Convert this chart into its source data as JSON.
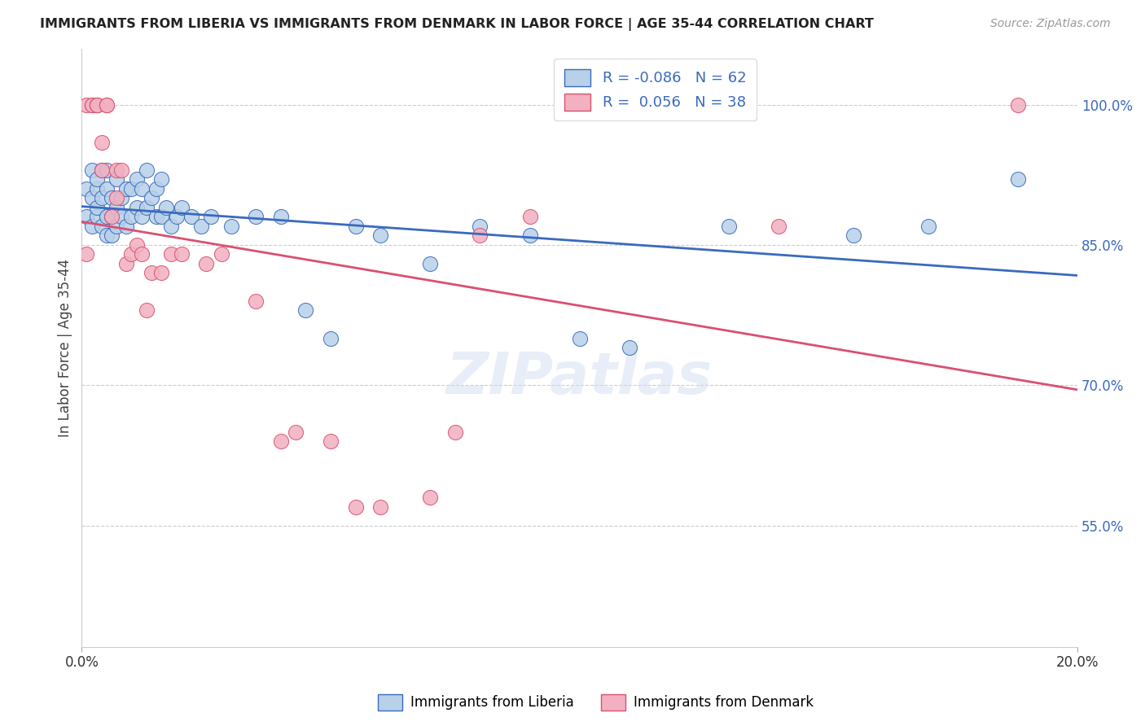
{
  "title": "IMMIGRANTS FROM LIBERIA VS IMMIGRANTS FROM DENMARK IN LABOR FORCE | AGE 35-44 CORRELATION CHART",
  "source": "Source: ZipAtlas.com",
  "ylabel": "In Labor Force | Age 35-44",
  "xlabel_ticks": [
    "0.0%",
    "20.0%"
  ],
  "ytick_labels": [
    "55.0%",
    "70.0%",
    "85.0%",
    "100.0%"
  ],
  "ytick_values": [
    0.55,
    0.7,
    0.85,
    1.0
  ],
  "xmin": 0.0,
  "xmax": 0.2,
  "ymin": 0.42,
  "ymax": 1.06,
  "liberia_R": "-0.086",
  "liberia_N": "62",
  "denmark_R": "0.056",
  "denmark_N": "38",
  "liberia_color": "#b8d0e8",
  "denmark_color": "#f2b0c0",
  "liberia_line_color": "#3a6abf",
  "denmark_line_color": "#d95070",
  "liberia_scatter_x": [
    0.001,
    0.001,
    0.002,
    0.002,
    0.002,
    0.003,
    0.003,
    0.003,
    0.003,
    0.004,
    0.004,
    0.004,
    0.005,
    0.005,
    0.005,
    0.005,
    0.006,
    0.006,
    0.006,
    0.007,
    0.007,
    0.007,
    0.008,
    0.008,
    0.009,
    0.009,
    0.01,
    0.01,
    0.011,
    0.011,
    0.012,
    0.012,
    0.013,
    0.013,
    0.014,
    0.015,
    0.015,
    0.016,
    0.016,
    0.017,
    0.018,
    0.019,
    0.02,
    0.022,
    0.024,
    0.026,
    0.03,
    0.035,
    0.04,
    0.045,
    0.05,
    0.055,
    0.06,
    0.07,
    0.08,
    0.09,
    0.1,
    0.11,
    0.13,
    0.155,
    0.17,
    0.188
  ],
  "liberia_scatter_y": [
    0.88,
    0.91,
    0.87,
    0.9,
    0.93,
    0.88,
    0.89,
    0.91,
    0.92,
    0.87,
    0.9,
    0.93,
    0.86,
    0.88,
    0.91,
    0.93,
    0.86,
    0.88,
    0.9,
    0.87,
    0.89,
    0.92,
    0.88,
    0.9,
    0.87,
    0.91,
    0.88,
    0.91,
    0.89,
    0.92,
    0.88,
    0.91,
    0.89,
    0.93,
    0.9,
    0.88,
    0.91,
    0.88,
    0.92,
    0.89,
    0.87,
    0.88,
    0.89,
    0.88,
    0.87,
    0.88,
    0.87,
    0.88,
    0.88,
    0.78,
    0.75,
    0.87,
    0.86,
    0.83,
    0.87,
    0.86,
    0.75,
    0.74,
    0.87,
    0.86,
    0.87,
    0.92
  ],
  "denmark_scatter_x": [
    0.001,
    0.001,
    0.002,
    0.002,
    0.003,
    0.003,
    0.003,
    0.004,
    0.004,
    0.005,
    0.005,
    0.006,
    0.007,
    0.007,
    0.008,
    0.009,
    0.01,
    0.011,
    0.012,
    0.013,
    0.014,
    0.016,
    0.018,
    0.02,
    0.025,
    0.028,
    0.035,
    0.04,
    0.043,
    0.05,
    0.055,
    0.06,
    0.07,
    0.075,
    0.08,
    0.09,
    0.14,
    0.188
  ],
  "denmark_scatter_y": [
    0.84,
    1.0,
    1.0,
    1.0,
    1.0,
    1.0,
    1.0,
    0.93,
    0.96,
    1.0,
    1.0,
    0.88,
    0.9,
    0.93,
    0.93,
    0.83,
    0.84,
    0.85,
    0.84,
    0.78,
    0.82,
    0.82,
    0.84,
    0.84,
    0.83,
    0.84,
    0.79,
    0.64,
    0.65,
    0.64,
    0.57,
    0.57,
    0.58,
    0.65,
    0.86,
    0.88,
    0.87,
    1.0
  ]
}
